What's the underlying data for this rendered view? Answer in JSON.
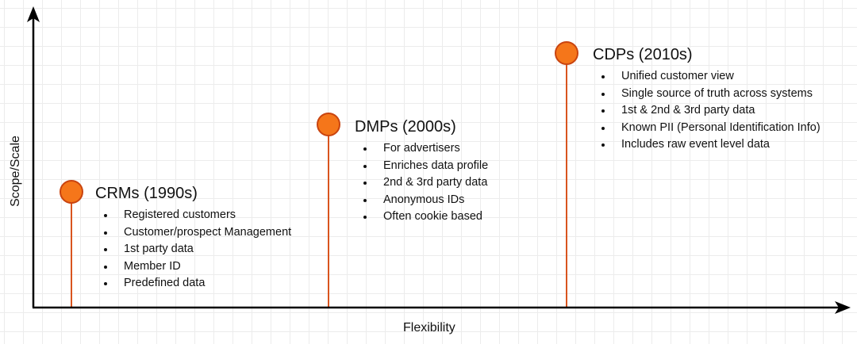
{
  "axes": {
    "x_label": "Flexibility",
    "y_label": "Scope/Scale"
  },
  "colors": {
    "milestone_fill": "#f5761a",
    "milestone_stroke": "#c9440f",
    "stem": "#d9541e",
    "axis": "#000000"
  },
  "milestones": [
    {
      "title": "CRMs (1990s)",
      "bullets": [
        "Registered customers",
        "Customer/prospect Management",
        "1st party data",
        "Member ID",
        "Predefined data"
      ]
    },
    {
      "title": "DMPs (2000s)",
      "bullets": [
        "For advertisers",
        "Enriches data profile",
        "2nd & 3rd party data",
        "Anonymous IDs",
        "Often cookie based"
      ]
    },
    {
      "title": "CDPs (2010s)",
      "bullets": [
        "Unified customer view",
        "Single source of truth across systems",
        "1st & 2nd & 3rd party data",
        "Known PII (Personal Identification Info)",
        "Includes raw event level data"
      ]
    }
  ]
}
